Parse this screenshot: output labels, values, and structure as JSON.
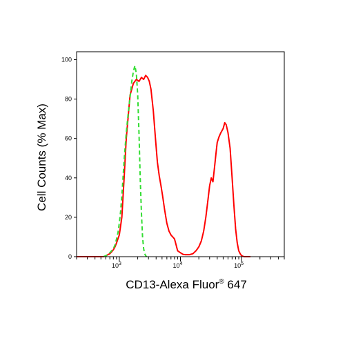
{
  "chart_data": {
    "type": "line",
    "xlabel": "CD13-Alexa Fluor",
    "xlabel_superscript": "®",
    "xlabel_suffix": " 647",
    "ylabel": "Cell Counts (% Max)",
    "x_scale": "log",
    "xlim": [
      200,
      500000
    ],
    "ylim": [
      0,
      100
    ],
    "y_ticks": [
      {
        "value": 0,
        "label": "0"
      },
      {
        "value": 20,
        "label": "20"
      },
      {
        "value": 40,
        "label": "40"
      },
      {
        "value": 60,
        "label": "60"
      },
      {
        "value": 80,
        "label": "80"
      },
      {
        "value": 100,
        "label": "100"
      }
    ],
    "x_ticks": [
      {
        "value": 1000,
        "base": "10",
        "exp": "3"
      },
      {
        "value": 10000,
        "base": "10",
        "exp": "4"
      },
      {
        "value": 100000,
        "base": "10",
        "exp": "5"
      }
    ],
    "grid": false,
    "series": [
      {
        "color": "#ff0000",
        "dash": "solid",
        "x": [
          200,
          250,
          300,
          350,
          400,
          450,
          500,
          550,
          600,
          650,
          700,
          750,
          800,
          850,
          900,
          1000,
          1100,
          1200,
          1300,
          1500,
          1700,
          1900,
          2100,
          2300,
          2500,
          2700,
          2900,
          3100,
          3300,
          3600,
          3900,
          4200,
          4500,
          4800,
          5100,
          5500,
          6000,
          6500,
          7000,
          7500,
          8000,
          8500,
          9000,
          10000,
          11000,
          12000,
          14000,
          16000,
          18000,
          20000,
          22000,
          24000,
          26000,
          28000,
          30000,
          32000,
          34000,
          36000,
          38000,
          40000,
          43000,
          46000,
          50000,
          53000,
          56000,
          60000,
          65000,
          70000,
          75000,
          80000,
          85000,
          90000,
          95000,
          100000,
          110000,
          120000,
          140000
        ],
        "y": [
          0,
          0,
          0,
          0,
          0,
          0,
          0,
          0,
          0.3,
          1,
          1.5,
          2.5,
          3.5,
          5,
          7,
          11,
          20,
          40,
          60,
          82,
          88,
          90,
          89,
          91,
          90,
          92,
          91,
          89,
          85,
          74,
          60,
          48,
          41,
          36,
          31,
          24,
          17,
          13,
          11,
          10,
          9,
          6,
          3,
          2,
          1.2,
          1,
          1,
          1.5,
          3,
          5,
          8,
          13,
          20,
          28,
          36,
          40,
          38,
          45,
          52,
          58,
          61,
          63,
          65,
          68,
          67,
          63,
          55,
          40,
          26,
          14,
          7,
          3,
          1.5,
          0.5,
          0,
          0,
          0
        ]
      },
      {
        "color": "#33dd33",
        "dash": "dashed",
        "x": [
          550,
          600,
          650,
          700,
          750,
          800,
          850,
          900,
          950,
          1000,
          1050,
          1100,
          1150,
          1200,
          1300,
          1400,
          1500,
          1600,
          1700,
          1800,
          1900,
          2000,
          2100,
          2200,
          2300,
          2400,
          2500,
          2600,
          2700,
          2800
        ],
        "y": [
          0,
          0.5,
          1,
          2,
          3,
          4,
          6,
          9,
          12,
          17,
          23,
          31,
          40,
          49,
          63,
          73,
          81,
          89,
          94,
          97,
          93,
          82,
          62,
          40,
          22,
          10,
          4,
          1.5,
          0.5,
          0
        ]
      }
    ]
  }
}
